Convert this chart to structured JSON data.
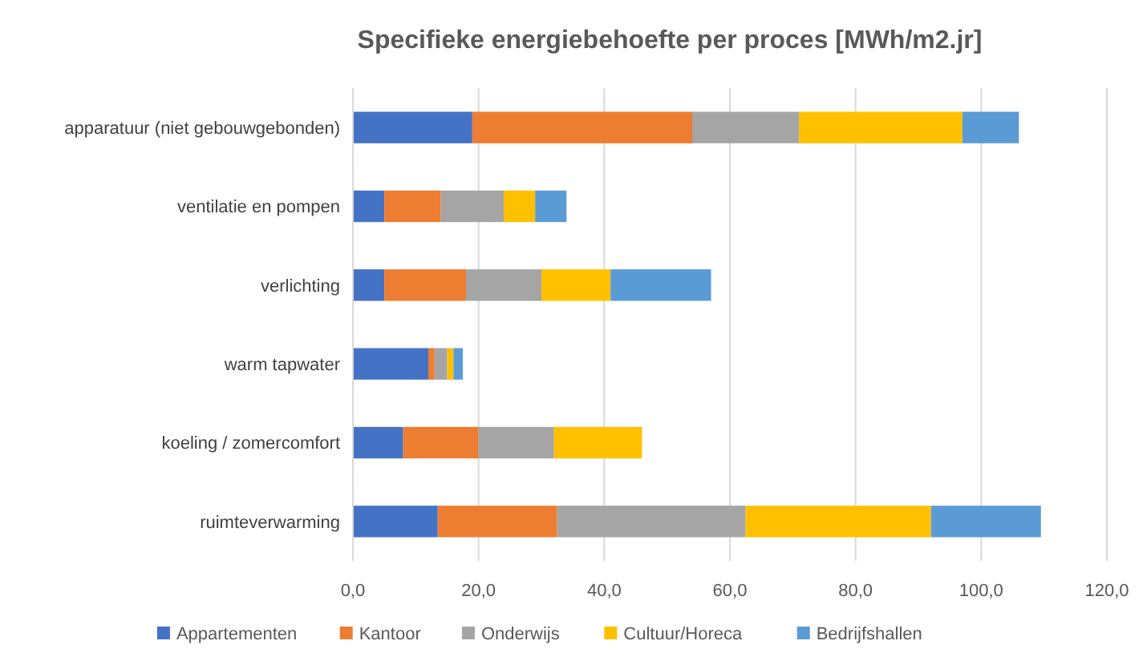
{
  "chart_data": {
    "type": "bar",
    "orientation": "horizontal",
    "stacked": true,
    "title": "Specifieke energiebehoefte per proces    [MWh/m2.jr]",
    "categories": [
      "apparatuur (niet gebouwgebonden)",
      "ventilatie en pompen",
      "verlichting",
      "warm tapwater",
      "koeling / zomercomfort",
      "ruimteverwarming"
    ],
    "series": [
      {
        "name": "Appartementen",
        "color": "#4472c4",
        "values": [
          19,
          5,
          5,
          12,
          8,
          13.5
        ]
      },
      {
        "name": "Kantoor",
        "color": "#ed7d31",
        "values": [
          35,
          9,
          13,
          1,
          12,
          19
        ]
      },
      {
        "name": "Onderwijs",
        "color": "#a5a5a5",
        "values": [
          17,
          10,
          12,
          2,
          12,
          30
        ]
      },
      {
        "name": "Cultuur/Horeca",
        "color": "#ffc000",
        "values": [
          26,
          5,
          11,
          1,
          14,
          29.5
        ]
      },
      {
        "name": "Bedrijfshallen",
        "color": "#5b9bd5",
        "values": [
          9,
          5,
          16,
          1.5,
          null,
          17.5
        ]
      }
    ],
    "xlim": [
      0,
      120
    ],
    "xticks": [
      {
        "value": 0,
        "label": "0,0"
      },
      {
        "value": 20,
        "label": "20,0"
      },
      {
        "value": 40,
        "label": "40,0"
      },
      {
        "value": 60,
        "label": "60,0"
      },
      {
        "value": 80,
        "label": "80,0"
      },
      {
        "value": 100,
        "label": "100,0"
      },
      {
        "value": 120,
        "label": "120,0"
      }
    ],
    "grid": "x",
    "legend": "bottom"
  }
}
